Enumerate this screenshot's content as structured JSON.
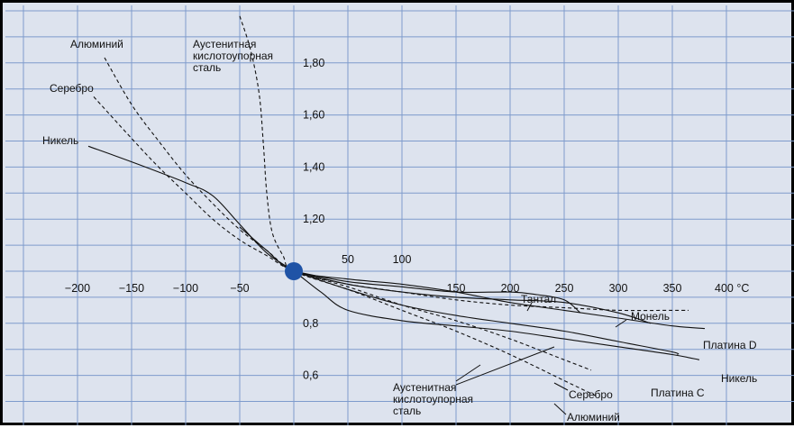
{
  "chart_data": {
    "type": "line",
    "x_unit": "°C",
    "x_tick_labels": [
      "−200",
      "−150",
      "−100",
      "−50",
      "50",
      "100",
      "150",
      "200",
      "250",
      "300",
      "350",
      "400"
    ],
    "y_tick_labels": [
      "0,6",
      "0,8",
      "1,20",
      "1,40",
      "1,60",
      "1,80"
    ],
    "x_ticks": [
      -200,
      -150,
      -100,
      -50,
      50,
      100,
      150,
      200,
      250,
      300,
      350,
      400
    ],
    "y_ticks": [
      0.6,
      0.8,
      1.2,
      1.4,
      1.6,
      1.8
    ],
    "xlim": [
      -250,
      425
    ],
    "ylim": [
      0.5,
      2.0
    ],
    "grid": true,
    "reference_point": {
      "x": 0,
      "y": 1.0
    },
    "series": [
      {
        "name": "Алюминий",
        "style": "dashed",
        "points": [
          [
            -175,
            1.82
          ],
          [
            -150,
            1.64
          ],
          [
            -125,
            1.5
          ],
          [
            -100,
            1.37
          ],
          [
            -75,
            1.26
          ],
          [
            -50,
            1.16
          ],
          [
            -25,
            1.08
          ],
          [
            0,
            1.0
          ],
          [
            50,
            0.93
          ],
          [
            100,
            0.85
          ],
          [
            150,
            0.77
          ],
          [
            200,
            0.68
          ],
          [
            250,
            0.58
          ],
          [
            280,
            0.52
          ]
        ]
      },
      {
        "name": "Серебро",
        "style": "dashed",
        "points": [
          [
            -185,
            1.67
          ],
          [
            -150,
            1.51
          ],
          [
            -125,
            1.4
          ],
          [
            -100,
            1.3
          ],
          [
            -75,
            1.2
          ],
          [
            -50,
            1.12
          ],
          [
            -25,
            1.06
          ],
          [
            0,
            1.0
          ],
          [
            50,
            0.94
          ],
          [
            100,
            0.87
          ],
          [
            150,
            0.81
          ],
          [
            200,
            0.74
          ],
          [
            250,
            0.66
          ],
          [
            275,
            0.62
          ]
        ]
      },
      {
        "name": "Аустенитная кислотоупорная сталь",
        "style": "dashed",
        "points": [
          [
            -50,
            1.98
          ],
          [
            -40,
            1.85
          ],
          [
            -32,
            1.68
          ],
          [
            -28,
            1.48
          ],
          [
            -25,
            1.3
          ],
          [
            -20,
            1.15
          ],
          [
            -10,
            1.06
          ],
          [
            0,
            1.0
          ],
          [
            50,
            0.95
          ],
          [
            100,
            0.92
          ],
          [
            150,
            0.89
          ],
          [
            200,
            0.87
          ],
          [
            250,
            0.86
          ],
          [
            300,
            0.85
          ],
          [
            350,
            0.85
          ],
          [
            365,
            0.85
          ]
        ]
      },
      {
        "name": "Никель",
        "style": "solid",
        "points": [
          [
            -190,
            1.48
          ],
          [
            -150,
            1.42
          ],
          [
            -100,
            1.34
          ],
          [
            -75,
            1.29
          ],
          [
            -50,
            1.18
          ],
          [
            -25,
            1.07
          ],
          [
            0,
            1.0
          ],
          [
            25,
            0.92
          ],
          [
            50,
            0.85
          ],
          [
            100,
            0.81
          ],
          [
            150,
            0.79
          ],
          [
            200,
            0.77
          ],
          [
            250,
            0.74
          ],
          [
            300,
            0.71
          ],
          [
            350,
            0.68
          ],
          [
            375,
            0.66
          ]
        ]
      },
      {
        "name": "Платина D",
        "style": "solid",
        "points": [
          [
            -50,
            1.17
          ],
          [
            -25,
            1.08
          ],
          [
            0,
            1.0
          ],
          [
            50,
            0.97
          ],
          [
            100,
            0.95
          ],
          [
            150,
            0.92
          ],
          [
            200,
            0.88
          ],
          [
            250,
            0.85
          ],
          [
            300,
            0.82
          ],
          [
            350,
            0.79
          ],
          [
            380,
            0.78
          ]
        ]
      },
      {
        "name": "Платина C",
        "style": "solid",
        "points": [
          [
            0,
            1.0
          ],
          [
            50,
            0.93
          ],
          [
            100,
            0.87
          ],
          [
            150,
            0.83
          ],
          [
            200,
            0.8
          ],
          [
            250,
            0.77
          ],
          [
            300,
            0.73
          ],
          [
            350,
            0.69
          ],
          [
            355,
            0.68
          ]
        ]
      },
      {
        "name": "Тантал",
        "style": "solid",
        "points": [
          [
            0,
            1.0
          ],
          [
            50,
            0.96
          ],
          [
            100,
            0.94
          ],
          [
            150,
            0.92
          ],
          [
            200,
            0.92
          ],
          [
            225,
            0.91
          ],
          [
            250,
            0.89
          ],
          [
            265,
            0.84
          ]
        ]
      },
      {
        "name": "Монель",
        "style": "solid",
        "points": [
          [
            0,
            1.0
          ],
          [
            50,
            0.95
          ],
          [
            100,
            0.92
          ],
          [
            150,
            0.9
          ],
          [
            200,
            0.89
          ],
          [
            250,
            0.88
          ],
          [
            300,
            0.84
          ],
          [
            330,
            0.8
          ]
        ]
      }
    ]
  },
  "labels": {
    "aluminium": "Алюминий",
    "silver": "Серебро",
    "nickel": "Никель",
    "steel_top": [
      "Аустенитная",
      "кислотоупорная",
      "сталь"
    ],
    "steel_bottom": [
      "Аустенитная",
      "кислотоупорная",
      "сталь"
    ],
    "tantal": "Тантал",
    "monel": "Монель",
    "platinum_d": "Платина D",
    "platinum_c": "Платина C",
    "nickel_right": "Никель",
    "silver_right": "Серебро",
    "aluminium_right": "Алюминий"
  },
  "colors": {
    "plot_bg": "#dde3ee",
    "grid": "#7e9bcc",
    "curve": "#111111",
    "reference_dot": "#1f53a6"
  }
}
